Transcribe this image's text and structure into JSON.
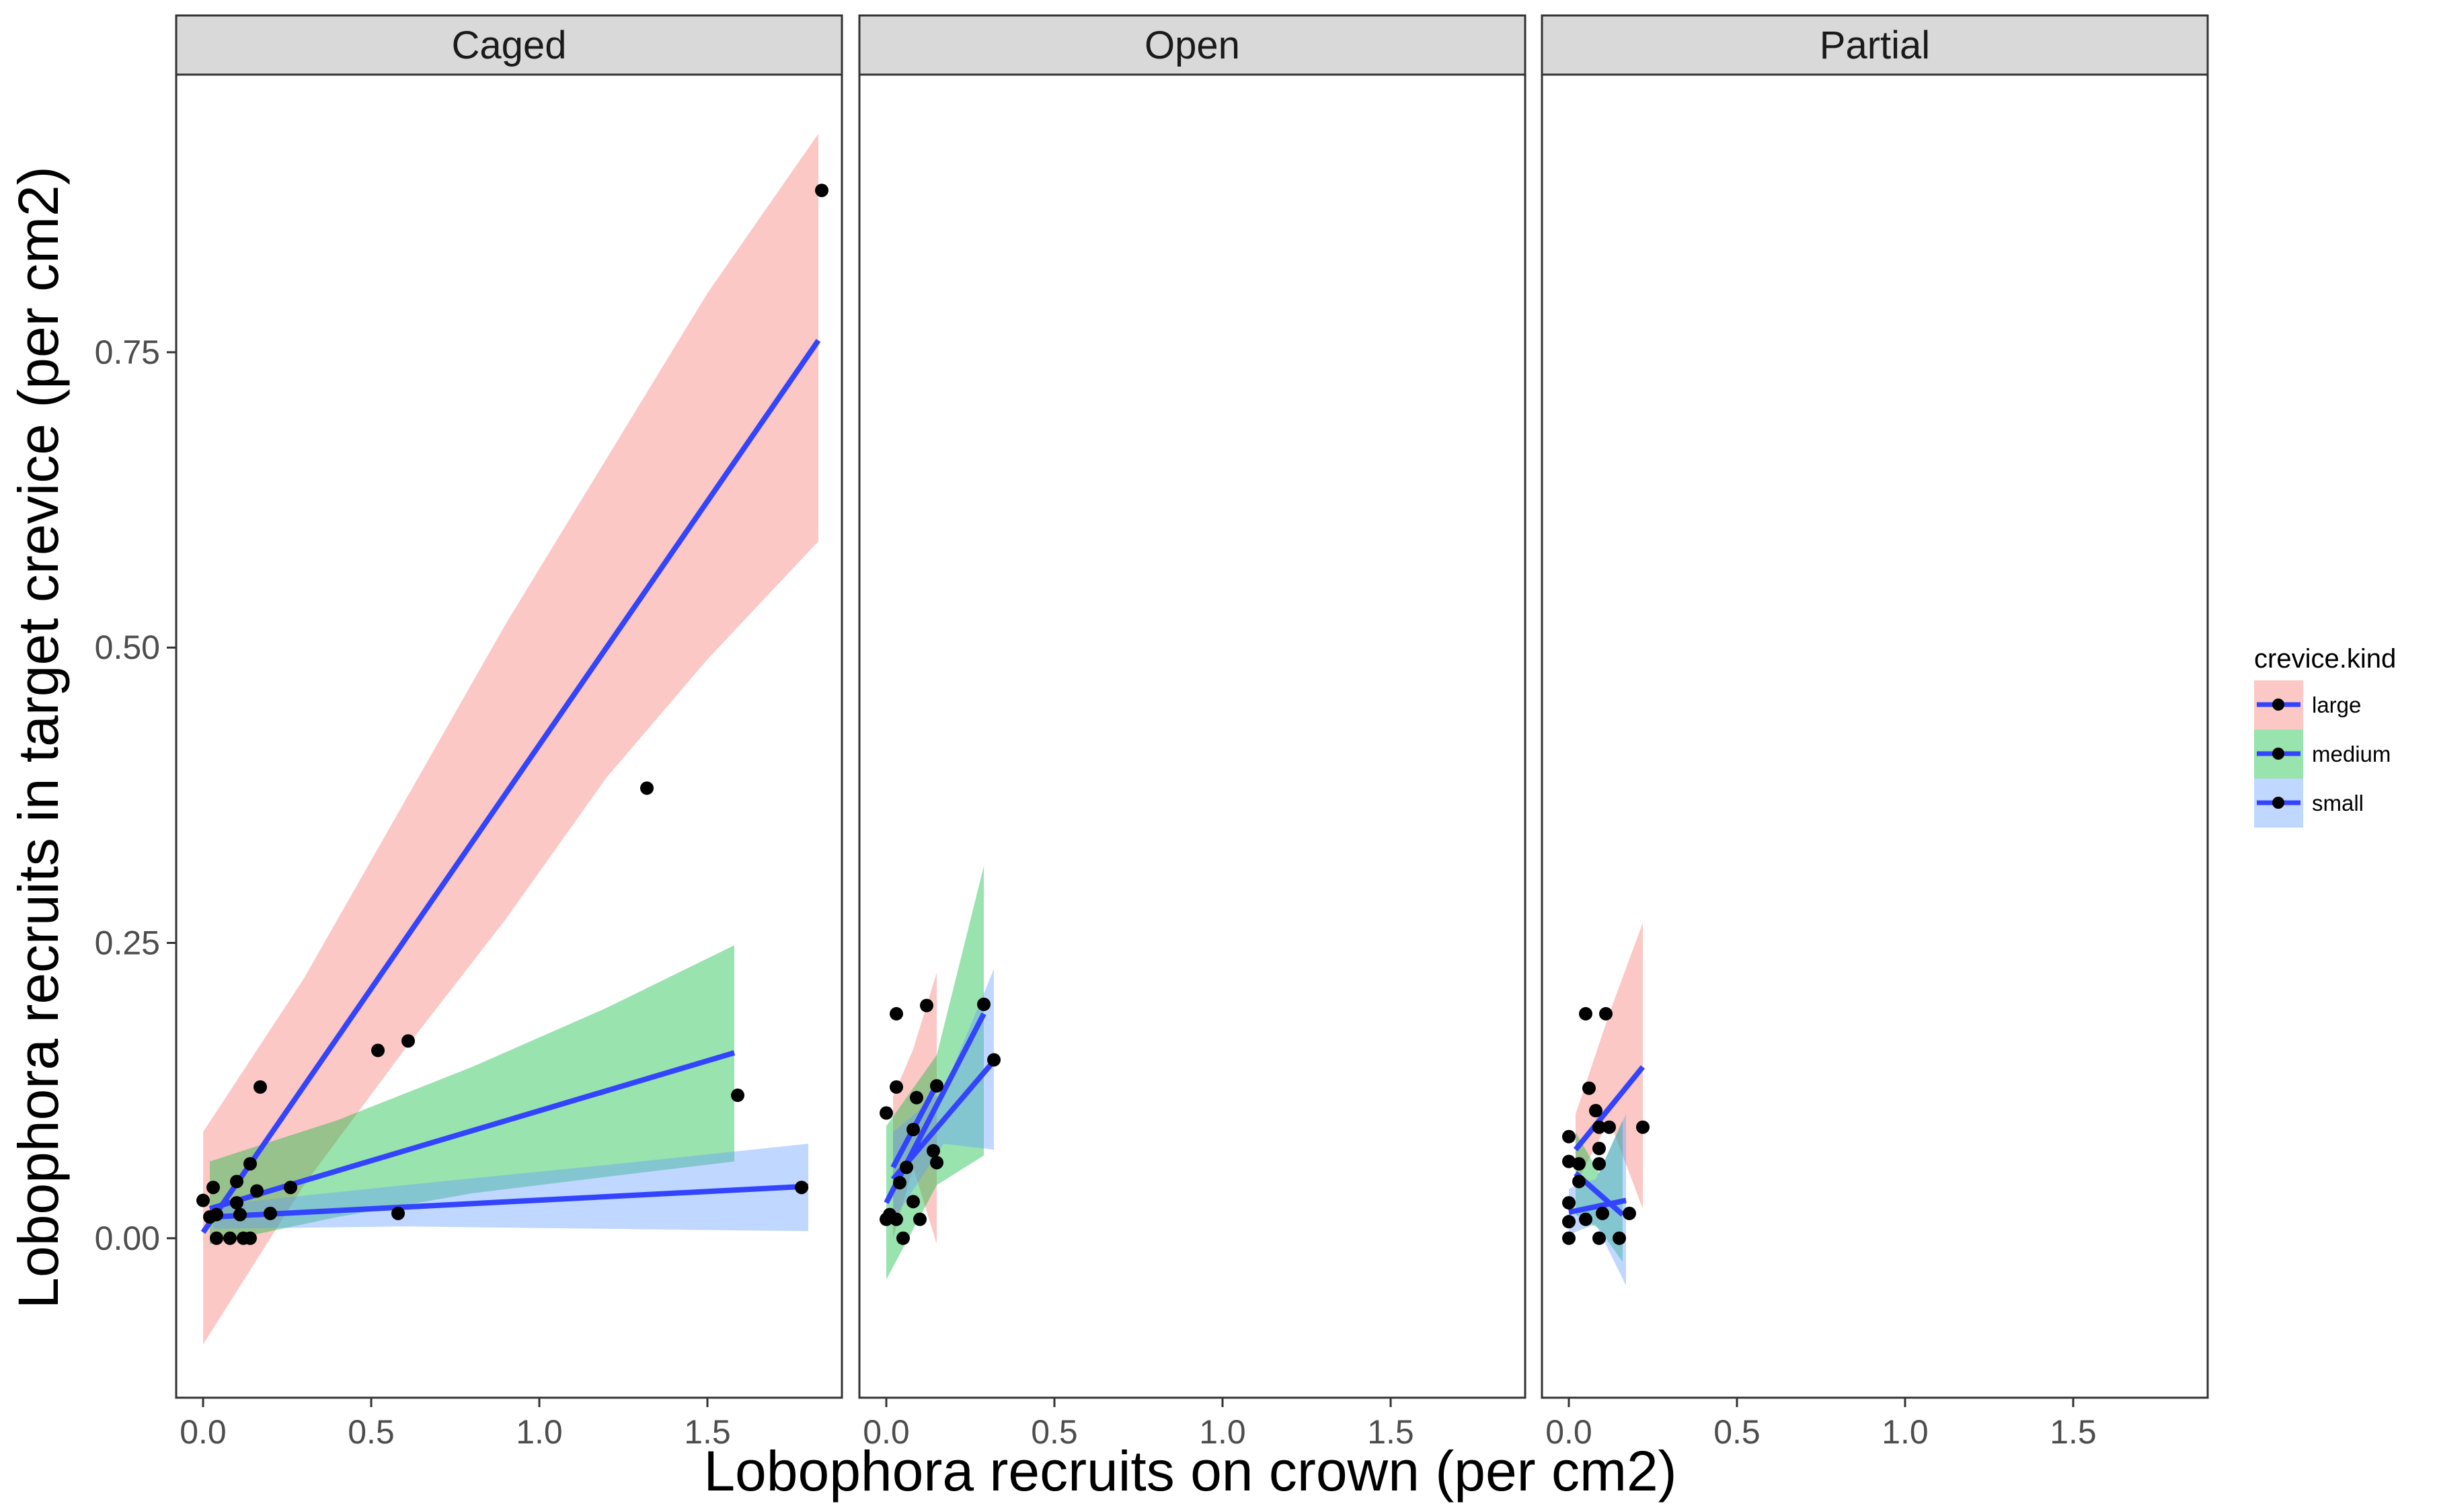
{
  "chart_data": {
    "type": "scatter",
    "title": "",
    "xlabel": "Lobophora recruits on crown (per cm2)",
    "ylabel": "Lobophora recruits in target crevice (per cm2)",
    "xlim": [
      -0.08,
      1.9
    ],
    "ylim": [
      -0.135,
      0.985
    ],
    "x_ticks": [
      0.0,
      0.5,
      1.0,
      1.5
    ],
    "x_tick_labels": [
      "0.0",
      "0.5",
      "1.0",
      "1.5"
    ],
    "y_ticks": [
      0.0,
      0.25,
      0.5,
      0.75
    ],
    "y_tick_labels": [
      "0.00",
      "0.25",
      "0.50",
      "0.75"
    ],
    "grid": false,
    "legend": {
      "title": "crevice.kind",
      "position": "right",
      "entries": [
        {
          "label": "large",
          "fill": "#F8766D"
        },
        {
          "label": "medium",
          "fill": "#00BA38"
        },
        {
          "label": "small",
          "fill": "#619CFF"
        }
      ]
    },
    "colors": {
      "line": "#3344FF",
      "point": "#000000",
      "strip_bg": "#D9D9D9",
      "ribbon_opacity": 0.4
    },
    "panels": [
      {
        "name": "Caged",
        "series": [
          {
            "name": "large",
            "line": [
              [
                0.0,
                0.005
              ],
              [
                1.83,
                0.76
              ]
            ],
            "ribbon": [
              [
                0.0,
                -0.09,
                0.09
              ],
              [
                0.3,
                0.045,
                0.22
              ],
              [
                0.6,
                0.16,
                0.37
              ],
              [
                0.9,
                0.27,
                0.52
              ],
              [
                1.2,
                0.39,
                0.66
              ],
              [
                1.5,
                0.49,
                0.8
              ],
              [
                1.83,
                0.59,
                0.935
              ]
            ],
            "points": [
              [
                0.0,
                0.032
              ],
              [
                0.02,
                0.018
              ],
              [
                0.03,
                0.043
              ],
              [
                0.1,
                0.048
              ],
              [
                0.12,
                0.0
              ],
              [
                0.17,
                0.128
              ],
              [
                0.52,
                0.159
              ],
              [
                0.61,
                0.167
              ],
              [
                1.32,
                0.381
              ],
              [
                1.84,
                0.887
              ]
            ]
          },
          {
            "name": "medium",
            "line": [
              [
                0.02,
                0.025
              ],
              [
                1.58,
                0.157
              ]
            ],
            "ribbon": [
              [
                0.02,
                -0.005,
                0.065
              ],
              [
                0.4,
                0.018,
                0.1
              ],
              [
                0.8,
                0.038,
                0.145
              ],
              [
                1.2,
                0.052,
                0.195
              ],
              [
                1.58,
                0.065,
                0.248
              ]
            ],
            "points": [
              [
                0.04,
                0.02
              ],
              [
                0.08,
                0.0
              ],
              [
                0.1,
                0.03
              ],
              [
                0.14,
                0.063
              ],
              [
                0.16,
                0.04
              ],
              [
                0.26,
                0.043
              ],
              [
                1.59,
                0.121
              ]
            ]
          },
          {
            "name": "small",
            "line": [
              [
                0.03,
                0.018
              ],
              [
                1.8,
                0.044
              ]
            ],
            "ribbon": [
              [
                0.03,
                0.008,
                0.028
              ],
              [
                0.6,
                0.01,
                0.045
              ],
              [
                1.2,
                0.008,
                0.062
              ],
              [
                1.8,
                0.006,
                0.08
              ]
            ],
            "points": [
              [
                0.04,
                0.0
              ],
              [
                0.11,
                0.02
              ],
              [
                0.14,
                0.0
              ],
              [
                0.2,
                0.021
              ],
              [
                0.58,
                0.021
              ],
              [
                1.78,
                0.043
              ]
            ]
          }
        ]
      },
      {
        "name": "Open",
        "series": [
          {
            "name": "large",
            "line": [
              [
                0.02,
                0.06
              ],
              [
                0.15,
                0.13
              ]
            ],
            "ribbon": [
              [
                0.02,
                0.0,
                0.12
              ],
              [
                0.08,
                0.06,
                0.16
              ],
              [
                0.15,
                -0.005,
                0.225
              ]
            ],
            "points": [
              [
                0.0,
                0.106
              ],
              [
                0.03,
                0.19
              ],
              [
                0.03,
                0.128
              ],
              [
                0.06,
                0.06
              ],
              [
                0.09,
                0.119
              ],
              [
                0.12,
                0.197
              ]
            ]
          },
          {
            "name": "medium",
            "line": [
              [
                0.0,
                0.03
              ],
              [
                0.29,
                0.19
              ]
            ],
            "ribbon": [
              [
                0.0,
                -0.035,
                0.095
              ],
              [
                0.15,
                0.045,
                0.155
              ],
              [
                0.29,
                0.07,
                0.315
              ]
            ],
            "points": [
              [
                0.01,
                0.02
              ],
              [
                0.03,
                0.016
              ],
              [
                0.05,
                0.0
              ],
              [
                0.08,
                0.031
              ],
              [
                0.1,
                0.016
              ],
              [
                0.15,
                0.129
              ],
              [
                0.15,
                0.064
              ]
            ]
          },
          {
            "name": "small",
            "line": [
              [
                0.02,
                0.05
              ],
              [
                0.32,
                0.15
              ]
            ],
            "ribbon": [
              [
                0.02,
                0.015,
                0.09
              ],
              [
                0.17,
                0.08,
                0.125
              ],
              [
                0.32,
                0.075,
                0.228
              ]
            ],
            "points": [
              [
                0.0,
                0.016
              ],
              [
                0.04,
                0.047
              ],
              [
                0.08,
                0.092
              ],
              [
                0.14,
                0.074
              ],
              [
                0.29,
                0.198
              ],
              [
                0.32,
                0.151
              ]
            ]
          }
        ]
      },
      {
        "name": "Partial",
        "series": [
          {
            "name": "large",
            "line": [
              [
                0.02,
                0.075
              ],
              [
                0.22,
                0.145
              ]
            ],
            "ribbon": [
              [
                0.02,
                0.045,
                0.105
              ],
              [
                0.12,
                0.1,
                0.19
              ],
              [
                0.22,
                0.025,
                0.267
              ]
            ],
            "points": [
              [
                0.05,
                0.19
              ],
              [
                0.06,
                0.127
              ],
              [
                0.08,
                0.108
              ],
              [
                0.09,
                0.094
              ],
              [
                0.12,
                0.094
              ],
              [
                0.11,
                0.19
              ],
              [
                0.22,
                0.094
              ]
            ]
          },
          {
            "name": "medium",
            "line": [
              [
                0.02,
                0.055
              ],
              [
                0.16,
                0.02
              ]
            ],
            "ribbon": [
              [
                0.02,
                0.02,
                0.09
              ],
              [
                0.09,
                0.008,
                0.055
              ],
              [
                0.16,
                -0.02,
                0.1
              ]
            ],
            "points": [
              [
                0.0,
                0.0
              ],
              [
                0.0,
                0.03
              ],
              [
                0.03,
                0.048
              ],
              [
                0.05,
                0.016
              ],
              [
                0.09,
                0.0
              ],
              [
                0.09,
                0.076
              ],
              [
                0.09,
                0.063
              ]
            ]
          },
          {
            "name": "small",
            "line": [
              [
                0.0,
                0.022
              ],
              [
                0.17,
                0.032
              ]
            ],
            "ribbon": [
              [
                0.0,
                0.003,
                0.042
              ],
              [
                0.08,
                0.012,
                0.05
              ],
              [
                0.17,
                -0.04,
                0.105
              ]
            ],
            "points": [
              [
                0.0,
                0.086
              ],
              [
                0.0,
                0.065
              ],
              [
                0.0,
                0.014
              ],
              [
                0.03,
                0.063
              ],
              [
                0.1,
                0.021
              ],
              [
                0.15,
                0.0
              ],
              [
                0.18,
                0.021
              ]
            ]
          }
        ]
      }
    ]
  }
}
